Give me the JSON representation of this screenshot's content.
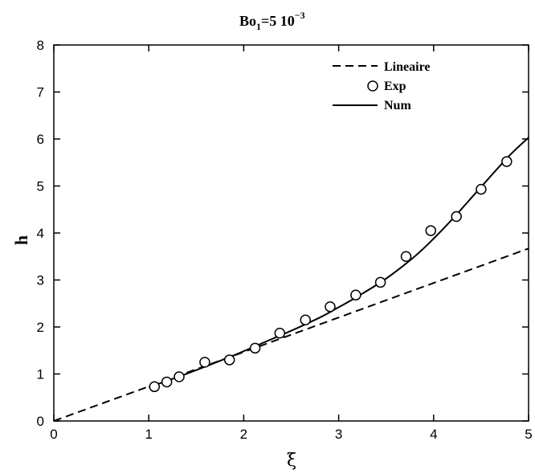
{
  "chart_data": {
    "type": "line",
    "title_main": "Bo",
    "title_sub": "1",
    "title_rest": "=5 10",
    "title_sup": "−3",
    "xlabel": "ξ",
    "ylabel": "h",
    "xlim": [
      0,
      5
    ],
    "ylim": [
      0,
      8
    ],
    "xticks": [
      0,
      1,
      2,
      3,
      4,
      5
    ],
    "yticks": [
      0,
      1,
      2,
      3,
      4,
      5,
      6,
      7,
      8
    ],
    "legend_position": "top-right",
    "series": [
      {
        "name": "Lineaire",
        "style": "dashed",
        "x": [
          0,
          5
        ],
        "y": [
          0,
          3.67
        ]
      },
      {
        "name": "Exp",
        "style": "markers",
        "marker": "circle",
        "x": [
          1.06,
          1.19,
          1.32,
          1.59,
          1.85,
          2.12,
          2.38,
          2.65,
          2.91,
          3.18,
          3.44,
          3.71,
          3.97,
          4.24,
          4.5,
          4.77
        ],
        "y": [
          0.73,
          0.83,
          0.94,
          1.25,
          1.3,
          1.55,
          1.87,
          2.15,
          2.43,
          2.68,
          2.95,
          3.5,
          4.05,
          4.35,
          4.93,
          5.52
        ]
      },
      {
        "name": "Num",
        "style": "solid",
        "x": [
          1.0,
          1.3,
          1.6,
          1.9,
          2.2,
          2.5,
          2.8,
          3.0,
          3.2,
          3.5,
          3.8,
          4.0,
          4.2,
          4.5,
          4.8,
          5.0
        ],
        "y": [
          0.72,
          0.93,
          1.16,
          1.4,
          1.66,
          1.92,
          2.2,
          2.42,
          2.65,
          3.03,
          3.5,
          3.88,
          4.3,
          4.98,
          5.65,
          6.03
        ]
      }
    ]
  }
}
